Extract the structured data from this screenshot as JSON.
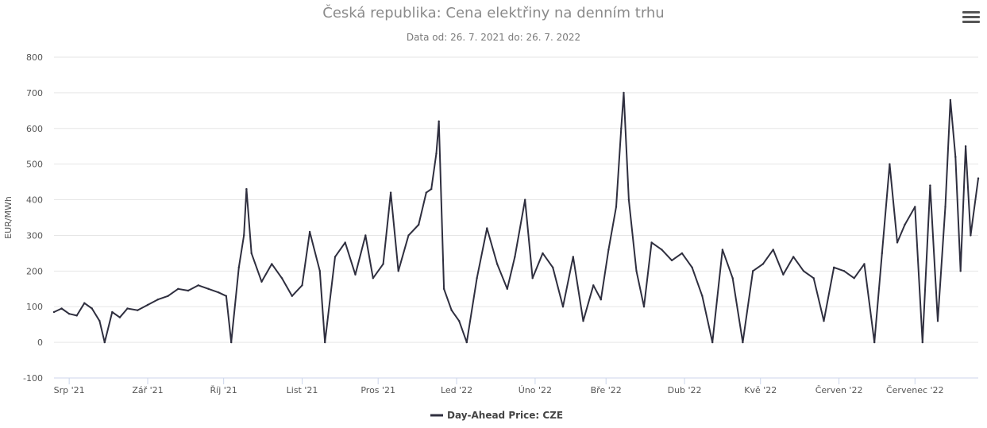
{
  "chart_data": {
    "type": "line",
    "title": "Česká republika: Cena elektřiny na denním trhu",
    "subtitle": "Data od: 26. 7. 2021 do: 26. 7. 2022",
    "ylabel": "EUR/MWh",
    "xlabel": "",
    "ylim": [
      -100,
      800
    ],
    "yticks": [
      -100,
      0,
      100,
      200,
      300,
      400,
      500,
      600,
      700,
      800
    ],
    "xlim": [
      "2021-07-26",
      "2022-07-26"
    ],
    "xticks": [
      {
        "date": "2021-08-01",
        "label": "Srp '21"
      },
      {
        "date": "2021-09-01",
        "label": "Zář '21"
      },
      {
        "date": "2021-10-01",
        "label": "Říj '21"
      },
      {
        "date": "2021-11-01",
        "label": "List '21"
      },
      {
        "date": "2021-12-01",
        "label": "Pros '21"
      },
      {
        "date": "2022-01-01",
        "label": "Led '22"
      },
      {
        "date": "2022-02-01",
        "label": "Úno '22"
      },
      {
        "date": "2022-03-01",
        "label": "Bře '22"
      },
      {
        "date": "2022-04-01",
        "label": "Dub '22"
      },
      {
        "date": "2022-05-01",
        "label": "Kvě '22"
      },
      {
        "date": "2022-06-01",
        "label": "Červen '22"
      },
      {
        "date": "2022-07-01",
        "label": "Červenec '22"
      }
    ],
    "grid": true,
    "legend_position": "bottom-center",
    "series": [
      {
        "name": "Day-Ahead Price: CZE",
        "color": "#2f2f3f",
        "points": [
          [
            "2021-07-26",
            85
          ],
          [
            "2021-07-29",
            95
          ],
          [
            "2021-08-01",
            80
          ],
          [
            "2021-08-04",
            75
          ],
          [
            "2021-08-07",
            110
          ],
          [
            "2021-08-10",
            95
          ],
          [
            "2021-08-13",
            60
          ],
          [
            "2021-08-15",
            0
          ],
          [
            "2021-08-18",
            85
          ],
          [
            "2021-08-21",
            70
          ],
          [
            "2021-08-24",
            95
          ],
          [
            "2021-08-28",
            90
          ],
          [
            "2021-09-01",
            105
          ],
          [
            "2021-09-05",
            120
          ],
          [
            "2021-09-09",
            130
          ],
          [
            "2021-09-13",
            150
          ],
          [
            "2021-09-17",
            145
          ],
          [
            "2021-09-21",
            160
          ],
          [
            "2021-09-25",
            150
          ],
          [
            "2021-09-29",
            140
          ],
          [
            "2021-10-02",
            130
          ],
          [
            "2021-10-04",
            0
          ],
          [
            "2021-10-07",
            210
          ],
          [
            "2021-10-09",
            300
          ],
          [
            "2021-10-10",
            430
          ],
          [
            "2021-10-12",
            250
          ],
          [
            "2021-10-16",
            170
          ],
          [
            "2021-10-20",
            220
          ],
          [
            "2021-10-24",
            180
          ],
          [
            "2021-10-28",
            130
          ],
          [
            "2021-11-01",
            160
          ],
          [
            "2021-11-04",
            310
          ],
          [
            "2021-11-08",
            200
          ],
          [
            "2021-11-10",
            0
          ],
          [
            "2021-11-14",
            240
          ],
          [
            "2021-11-18",
            280
          ],
          [
            "2021-11-22",
            190
          ],
          [
            "2021-11-26",
            300
          ],
          [
            "2021-11-29",
            180
          ],
          [
            "2021-12-03",
            220
          ],
          [
            "2021-12-06",
            420
          ],
          [
            "2021-12-09",
            200
          ],
          [
            "2021-12-13",
            300
          ],
          [
            "2021-12-17",
            330
          ],
          [
            "2021-12-20",
            420
          ],
          [
            "2021-12-22",
            430
          ],
          [
            "2021-12-24",
            530
          ],
          [
            "2021-12-25",
            620
          ],
          [
            "2021-12-27",
            150
          ],
          [
            "2021-12-30",
            90
          ],
          [
            "2022-01-02",
            60
          ],
          [
            "2022-01-05",
            0
          ],
          [
            "2022-01-09",
            180
          ],
          [
            "2022-01-13",
            320
          ],
          [
            "2022-01-17",
            220
          ],
          [
            "2022-01-21",
            150
          ],
          [
            "2022-01-24",
            240
          ],
          [
            "2022-01-28",
            400
          ],
          [
            "2022-01-31",
            180
          ],
          [
            "2022-02-04",
            250
          ],
          [
            "2022-02-08",
            210
          ],
          [
            "2022-02-12",
            100
          ],
          [
            "2022-02-16",
            240
          ],
          [
            "2022-02-20",
            60
          ],
          [
            "2022-02-24",
            160
          ],
          [
            "2022-02-27",
            120
          ],
          [
            "2022-03-02",
            260
          ],
          [
            "2022-03-05",
            380
          ],
          [
            "2022-03-07",
            600
          ],
          [
            "2022-03-08",
            700
          ],
          [
            "2022-03-10",
            400
          ],
          [
            "2022-03-13",
            200
          ],
          [
            "2022-03-16",
            100
          ],
          [
            "2022-03-19",
            280
          ],
          [
            "2022-03-23",
            260
          ],
          [
            "2022-03-27",
            230
          ],
          [
            "2022-03-31",
            250
          ],
          [
            "2022-04-04",
            210
          ],
          [
            "2022-04-08",
            130
          ],
          [
            "2022-04-12",
            0
          ],
          [
            "2022-04-16",
            260
          ],
          [
            "2022-04-20",
            180
          ],
          [
            "2022-04-24",
            0
          ],
          [
            "2022-04-28",
            200
          ],
          [
            "2022-05-02",
            220
          ],
          [
            "2022-05-06",
            260
          ],
          [
            "2022-05-10",
            190
          ],
          [
            "2022-05-14",
            240
          ],
          [
            "2022-05-18",
            200
          ],
          [
            "2022-05-22",
            180
          ],
          [
            "2022-05-26",
            60
          ],
          [
            "2022-05-30",
            210
          ],
          [
            "2022-06-03",
            200
          ],
          [
            "2022-06-07",
            180
          ],
          [
            "2022-06-11",
            220
          ],
          [
            "2022-06-15",
            0
          ],
          [
            "2022-06-18",
            250
          ],
          [
            "2022-06-21",
            500
          ],
          [
            "2022-06-24",
            280
          ],
          [
            "2022-06-27",
            330
          ],
          [
            "2022-07-01",
            380
          ],
          [
            "2022-07-04",
            0
          ],
          [
            "2022-07-07",
            440
          ],
          [
            "2022-07-10",
            60
          ],
          [
            "2022-07-13",
            380
          ],
          [
            "2022-07-15",
            680
          ],
          [
            "2022-07-17",
            520
          ],
          [
            "2022-07-19",
            200
          ],
          [
            "2022-07-21",
            550
          ],
          [
            "2022-07-23",
            300
          ],
          [
            "2022-07-26",
            460
          ]
        ]
      }
    ]
  },
  "toolbar": {
    "menu_icon": "hamburger-menu-icon"
  }
}
